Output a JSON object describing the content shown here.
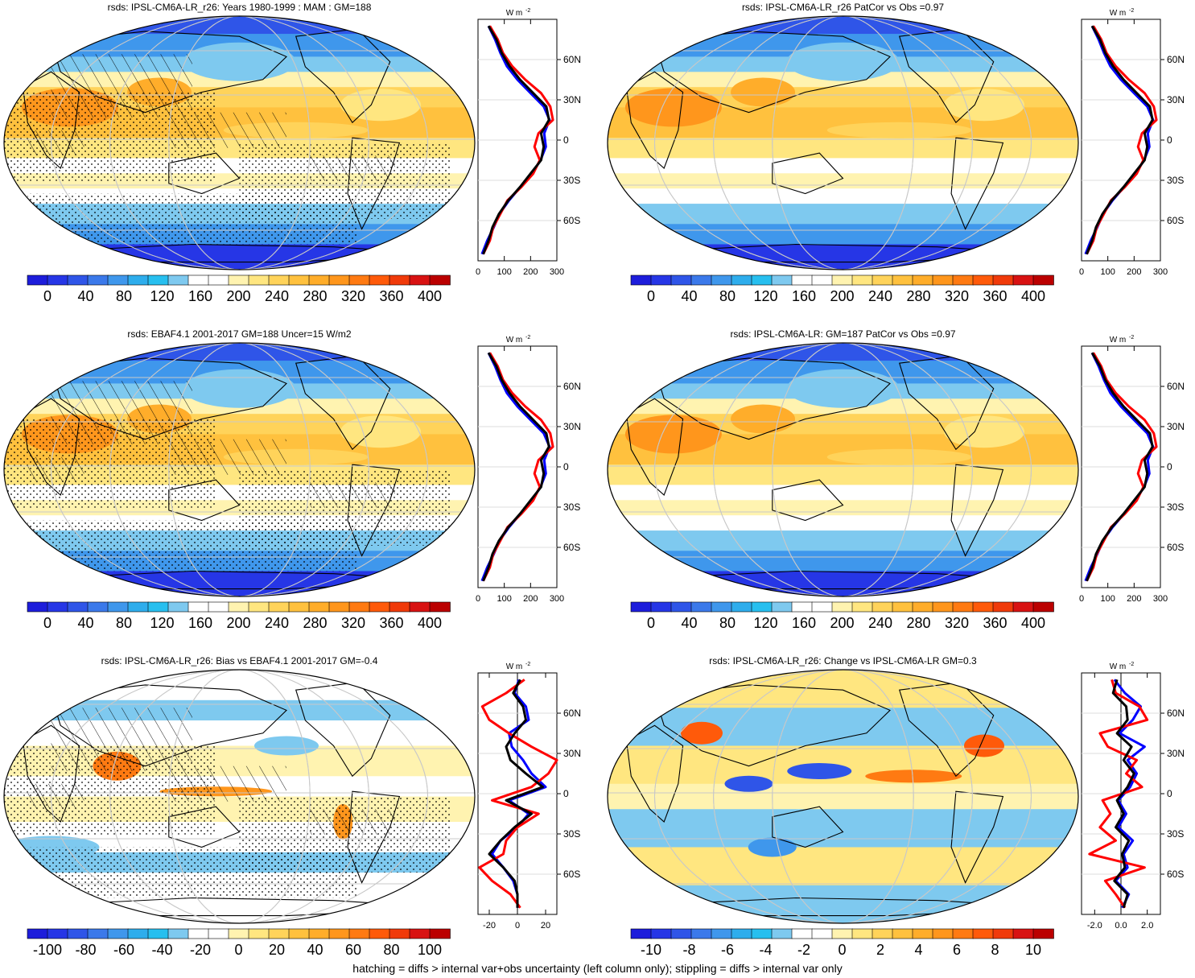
{
  "footer": "hatching = diffs > internal var+obs uncertainty (left column only); stippling = diffs > internal var only",
  "colorbars": {
    "abs": {
      "labels": [
        "0",
        "40",
        "80",
        "120",
        "160",
        "200",
        "240",
        "280",
        "320",
        "360",
        "400"
      ],
      "colors": [
        "#1d1ddb",
        "#2636e6",
        "#2f55e8",
        "#3b79ea",
        "#3f97ec",
        "#2eadec",
        "#27bfef",
        "#7ec9ef",
        "#ffffff",
        "#ffffff",
        "#fff3b0",
        "#ffe680",
        "#ffd35a",
        "#ffc13e",
        "#ffad2a",
        "#ff961c",
        "#ff7a12",
        "#ff5a0a",
        "#f03a0a",
        "#d81212",
        "#bb0000"
      ]
    },
    "bias": {
      "labels": [
        "-100",
        "-80",
        "-60",
        "-40",
        "-20",
        "0",
        "20",
        "40",
        "60",
        "80",
        "100"
      ],
      "colors": [
        "#1d1ddb",
        "#2636e6",
        "#2f55e8",
        "#3b79ea",
        "#3f97ec",
        "#2eadec",
        "#27bfef",
        "#7ec9ef",
        "#ffffff",
        "#ffffff",
        "#fff3b0",
        "#ffe680",
        "#ffd35a",
        "#ffc13e",
        "#ffad2a",
        "#ff961c",
        "#ff7a12",
        "#ff5a0a",
        "#f03a0a",
        "#d81212",
        "#bb0000"
      ]
    },
    "change": {
      "labels": [
        "-10",
        "-8",
        "-6",
        "-4",
        "-2",
        "0",
        "2",
        "4",
        "6",
        "8",
        "10"
      ],
      "colors": [
        "#1d1ddb",
        "#2636e6",
        "#2f55e8",
        "#3b79ea",
        "#3f97ec",
        "#2eadec",
        "#27bfef",
        "#7ec9ef",
        "#ffffff",
        "#ffffff",
        "#fff3b0",
        "#ffe680",
        "#ffd35a",
        "#ffc13e",
        "#ffad2a",
        "#ff961c",
        "#ff7a12",
        "#ff5a0a",
        "#f03a0a",
        "#d81212",
        "#bb0000"
      ]
    }
  },
  "lat_labels": [
    "60N",
    "30N",
    "0",
    "30S",
    "60S"
  ],
  "unit_label": "W m",
  "unit_exp": "-2",
  "line_colors": {
    "model": "#000000",
    "obs": "#0000ff",
    "ens": "#ff0000"
  },
  "panels": [
    {
      "title": "rsds: IPSL-CM6A-LR_r26: Years 1980-1999 : MAM : GM=188",
      "kind": "abs",
      "hatch": true,
      "stipple": true,
      "profile": {
        "x_ticks": [
          "0",
          "100",
          "200",
          "300"
        ],
        "xlim": [
          0,
          300
        ],
        "series": [
          {
            "lat": [
              -85,
              -75,
              -65,
              -55,
              -45,
              -35,
              -25,
              -15,
              -5,
              5,
              15,
              25,
              35,
              45,
              55,
              65,
              75,
              85
            ],
            "values": [
              20,
              40,
              55,
              80,
              115,
              160,
              200,
              240,
              250,
              240,
              270,
              260,
              210,
              160,
              120,
              90,
              70,
              40
            ]
          },
          {
            "lat": [
              -85,
              -75,
              -65,
              -55,
              -45,
              -35,
              -25,
              -15,
              -5,
              5,
              15,
              25,
              35,
              45,
              55,
              65,
              75,
              85
            ],
            "values": [
              15,
              35,
              60,
              82,
              118,
              162,
              205,
              238,
              258,
              252,
              272,
              250,
              200,
              150,
              110,
              85,
              65,
              40
            ]
          },
          {
            "lat": [
              -85,
              -75,
              -65,
              -55,
              -45,
              -35,
              -25,
              -15,
              -5,
              5,
              15,
              25,
              35,
              45,
              55,
              65,
              75,
              85
            ],
            "values": [
              20,
              45,
              58,
              85,
              112,
              165,
              210,
              235,
              215,
              230,
              285,
              275,
              240,
              180,
              130,
              95,
              75,
              45
            ]
          }
        ]
      }
    },
    {
      "title": "rsds: IPSL-CM6A-LR_r26 PatCor vs Obs =0.97",
      "kind": "abs",
      "hatch": false,
      "stipple": false,
      "profile": {
        "x_ticks": [
          "0",
          "100",
          "200",
          "300"
        ],
        "xlim": [
          0,
          300
        ],
        "series": [
          {
            "lat": [
              -85,
              -75,
              -65,
              -55,
              -45,
              -35,
              -25,
              -15,
              -5,
              5,
              15,
              25,
              35,
              45,
              55,
              65,
              75,
              85
            ],
            "values": [
              20,
              40,
              55,
              80,
              115,
              160,
              200,
              240,
              250,
              240,
              270,
              260,
              210,
              160,
              120,
              90,
              70,
              40
            ]
          },
          {
            "lat": [
              -85,
              -75,
              -65,
              -55,
              -45,
              -35,
              -25,
              -15,
              -5,
              5,
              15,
              25,
              35,
              45,
              55,
              65,
              75,
              85
            ],
            "values": [
              15,
              35,
              60,
              82,
              118,
              162,
              205,
              238,
              258,
              252,
              272,
              250,
              200,
              150,
              110,
              85,
              65,
              40
            ]
          },
          {
            "lat": [
              -85,
              -75,
              -65,
              -55,
              -45,
              -35,
              -25,
              -15,
              -5,
              5,
              15,
              25,
              35,
              45,
              55,
              65,
              75,
              85
            ],
            "values": [
              20,
              45,
              58,
              85,
              112,
              165,
              210,
              235,
              215,
              230,
              285,
              275,
              240,
              180,
              130,
              95,
              75,
              45
            ]
          }
        ]
      }
    },
    {
      "title": "rsds: EBAF4.1 2001-2017 GM=188 Uncer=15 W/m2",
      "kind": "abs",
      "hatch": true,
      "stipple": true,
      "profile": {
        "x_ticks": [
          "0",
          "100",
          "200",
          "300"
        ],
        "xlim": [
          0,
          300
        ],
        "series": [
          {
            "lat": [
              -85,
              -75,
              -65,
              -55,
              -45,
              -35,
              -25,
              -15,
              -5,
              5,
              15,
              25,
              35,
              45,
              55,
              65,
              75,
              85
            ],
            "values": [
              20,
              40,
              55,
              80,
              115,
              160,
              200,
              240,
              250,
              240,
              270,
              260,
              210,
              160,
              120,
              90,
              70,
              40
            ]
          },
          {
            "lat": [
              -85,
              -75,
              -65,
              -55,
              -45,
              -35,
              -25,
              -15,
              -5,
              5,
              15,
              25,
              35,
              45,
              55,
              65,
              75,
              85
            ],
            "values": [
              15,
              35,
              60,
              82,
              118,
              162,
              205,
              238,
              258,
              252,
              272,
              250,
              200,
              150,
              110,
              85,
              65,
              40
            ]
          },
          {
            "lat": [
              -85,
              -75,
              -65,
              -55,
              -45,
              -35,
              -25,
              -15,
              -5,
              5,
              15,
              25,
              35,
              45,
              55,
              65,
              75,
              85
            ],
            "values": [
              20,
              45,
              58,
              85,
              112,
              165,
              210,
              235,
              215,
              230,
              285,
              275,
              240,
              180,
              130,
              95,
              75,
              45
            ]
          }
        ]
      }
    },
    {
      "title": "rsds: IPSL-CM6A-LR: GM=187 PatCor vs Obs =0.97",
      "kind": "abs",
      "hatch": false,
      "stipple": false,
      "profile": {
        "x_ticks": [
          "0",
          "100",
          "200",
          "300"
        ],
        "xlim": [
          0,
          300
        ],
        "series": [
          {
            "lat": [
              -85,
              -75,
              -65,
              -55,
              -45,
              -35,
              -25,
              -15,
              -5,
              5,
              15,
              25,
              35,
              45,
              55,
              65,
              75,
              85
            ],
            "values": [
              20,
              40,
              55,
              80,
              115,
              160,
              200,
              240,
              250,
              240,
              270,
              260,
              210,
              160,
              120,
              90,
              70,
              40
            ]
          },
          {
            "lat": [
              -85,
              -75,
              -65,
              -55,
              -45,
              -35,
              -25,
              -15,
              -5,
              5,
              15,
              25,
              35,
              45,
              55,
              65,
              75,
              85
            ],
            "values": [
              15,
              35,
              60,
              82,
              118,
              162,
              205,
              238,
              258,
              252,
              272,
              250,
              200,
              150,
              110,
              85,
              65,
              40
            ]
          },
          {
            "lat": [
              -85,
              -75,
              -65,
              -55,
              -45,
              -35,
              -25,
              -15,
              -5,
              5,
              15,
              25,
              35,
              45,
              55,
              65,
              75,
              85
            ],
            "values": [
              20,
              45,
              58,
              85,
              112,
              165,
              210,
              235,
              215,
              230,
              285,
              275,
              240,
              180,
              130,
              95,
              75,
              45
            ]
          }
        ]
      }
    },
    {
      "title": "rsds: IPSL-CM6A-LR_r26: Bias vs EBAF4.1 2001-2017 GM=-0.4",
      "kind": "bias",
      "hatch": true,
      "stipple": true,
      "profile": {
        "x_ticks": [
          "-20",
          "0",
          "20"
        ],
        "xlim": [
          -28,
          28
        ],
        "series": [
          {
            "lat": [
              -85,
              -75,
              -65,
              -55,
              -45,
              -35,
              -25,
              -15,
              -5,
              5,
              15,
              25,
              35,
              45,
              55,
              65,
              75,
              85
            ],
            "values": [
              0,
              0,
              -2,
              -10,
              -20,
              -12,
              -2,
              10,
              -8,
              18,
              6,
              -5,
              -8,
              -2,
              6,
              4,
              -3,
              2
            ]
          },
          {
            "lat": [
              -85,
              -75,
              -65,
              -55,
              -45,
              -35,
              -25,
              -15,
              -5,
              5,
              15,
              25,
              35,
              45,
              55,
              65,
              75,
              85
            ],
            "values": [
              0,
              0,
              -3,
              -10,
              -18,
              -12,
              0,
              8,
              -6,
              20,
              10,
              4,
              -4,
              -6,
              8,
              6,
              -2,
              1
            ]
          },
          {
            "lat": [
              -85,
              -75,
              -65,
              -55,
              -45,
              -35,
              -25,
              -15,
              -5,
              5,
              15,
              25,
              35,
              45,
              55,
              65,
              75,
              85
            ],
            "values": [
              2,
              -5,
              -18,
              -27,
              -10,
              -8,
              0,
              15,
              -18,
              10,
              22,
              28,
              10,
              -6,
              -20,
              -25,
              -8,
              5
            ]
          }
        ]
      }
    },
    {
      "title": "rsds: IPSL-CM6A-LR_r26: Change vs IPSL-CM6A-LR GM=0.3",
      "kind": "change",
      "hatch": false,
      "stipple": false,
      "profile": {
        "x_ticks": [
          "-2.0",
          "0.0",
          "2.0"
        ],
        "xlim": [
          -3.0,
          3.0
        ],
        "series": [
          {
            "lat": [
              -85,
              -75,
              -65,
              -55,
              -45,
              -35,
              -25,
              -15,
              -5,
              5,
              15,
              25,
              35,
              45,
              55,
              65,
              75,
              85
            ],
            "values": [
              0.2,
              0.5,
              -0.5,
              0.3,
              0.1,
              0.6,
              -0.4,
              0.2,
              -0.3,
              0.5,
              1.0,
              0.2,
              0.8,
              -0.3,
              0.5,
              0.4,
              -0.6,
              -0.3
            ]
          },
          {
            "lat": [
              -85,
              -75,
              -65,
              -55,
              -45,
              -35,
              -25,
              -15,
              -5,
              5,
              15,
              25,
              35,
              45,
              55,
              65,
              75,
              85
            ],
            "values": [
              0.1,
              0.6,
              -0.4,
              0.5,
              0.2,
              0.9,
              -0.2,
              0.4,
              -0.2,
              0.7,
              1.2,
              0.5,
              1.8,
              -0.1,
              0.9,
              1.5,
              0.3,
              -0.5
            ]
          },
          {
            "lat": [
              -85,
              -75,
              -65,
              -55,
              -45,
              -35,
              -25,
              -15,
              -5,
              5,
              15,
              25,
              35,
              45,
              55,
              65,
              75,
              85
            ],
            "values": [
              0.3,
              -0.4,
              -1.2,
              1.8,
              -2.4,
              -0.4,
              -1.6,
              -0.8,
              -1.4,
              1.6,
              0.4,
              1.2,
              -1.0,
              -1.6,
              2.0,
              1.4,
              -0.4,
              -0.7
            ]
          }
        ]
      }
    }
  ]
}
